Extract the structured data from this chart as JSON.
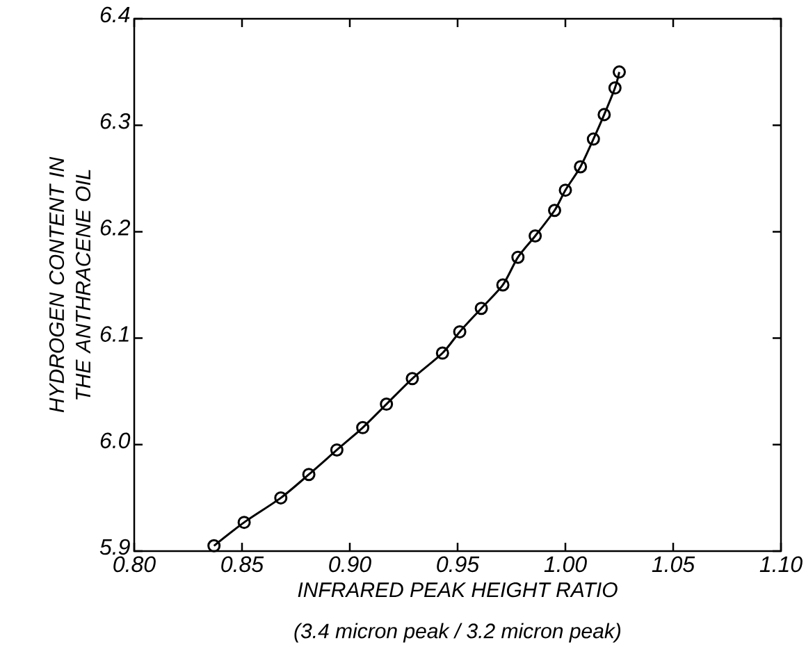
{
  "chart_data": {
    "type": "line",
    "xlabel": "INFRARED PEAK HEIGHT RATIO",
    "ylabel": "HYDROGEN CONTENT IN THE ANTHRACENE OIL",
    "annotations": [
      "(3.4 micron peak / 3.2 micron peak)"
    ],
    "x": [
      0.837,
      0.851,
      0.868,
      0.881,
      0.894,
      0.906,
      0.917,
      0.929,
      0.943,
      0.951,
      0.961,
      0.971,
      0.978,
      0.986,
      0.995,
      1.0,
      1.007,
      1.013,
      1.018,
      1.023,
      1.025
    ],
    "series": [
      {
        "color": "#000000",
        "values": [
          5.905,
          5.927,
          5.95,
          5.972,
          5.995,
          6.016,
          6.038,
          6.062,
          6.086,
          6.106,
          6.128,
          6.15,
          6.176,
          6.196,
          6.22,
          6.239,
          6.261,
          6.287,
          6.31,
          6.335,
          6.35
        ]
      }
    ],
    "xlim": [
      0.8,
      1.1
    ],
    "xticks": [
      {
        "value": 0.8,
        "label": "0.80"
      },
      {
        "value": 0.85,
        "label": "0.85"
      },
      {
        "value": 0.9,
        "label": "0.90"
      },
      {
        "value": 0.95,
        "label": "0.95"
      },
      {
        "value": 1.0,
        "label": "1.00"
      },
      {
        "value": 1.05,
        "label": "1.05"
      },
      {
        "value": 1.1,
        "label": "1.10"
      }
    ],
    "ylim": [
      5.9,
      6.4
    ],
    "yticks": [
      5.9,
      {
        "value": 6.0,
        "label": "6.0"
      },
      6.1,
      6.2,
      6.3,
      6.4
    ],
    "marker": "circle",
    "line_style": "solid"
  }
}
